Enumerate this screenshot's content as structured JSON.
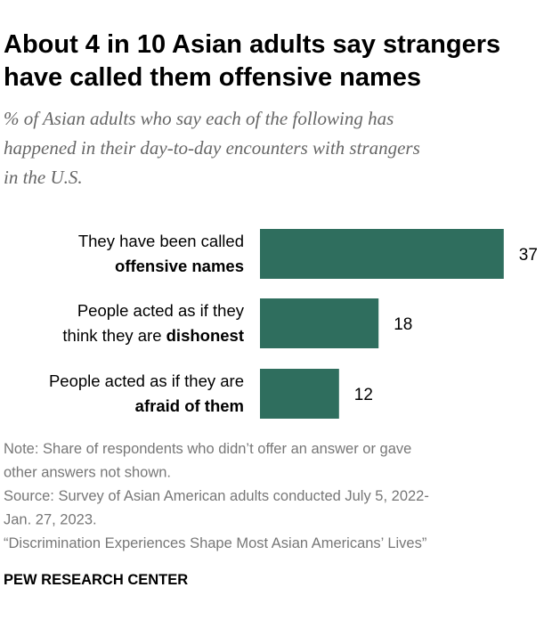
{
  "chart_data": {
    "type": "bar",
    "orientation": "horizontal",
    "title": [
      "About 4 in 10 Asian adults say strangers",
      "have called them offensive names"
    ],
    "subtitle": [
      "% of Asian adults who say each of the following has",
      "happened in their day-to-day encounters with strangers",
      "in the U.S."
    ],
    "categories": [
      [
        [
          {
            "text": "They have been called"
          }
        ],
        [
          {
            "text": "offensive names",
            "bold": true
          }
        ]
      ],
      [
        [
          {
            "text": "People acted as if they"
          }
        ],
        [
          {
            "text": "think they are "
          },
          {
            "text": "dishonest",
            "bold": true
          }
        ]
      ],
      [
        [
          {
            "text": "People acted as if they are"
          }
        ],
        [
          {
            "text": "afraid of them",
            "bold": true
          }
        ]
      ]
    ],
    "values": [
      37,
      18,
      12
    ],
    "color": "#2f6e5e",
    "notes": [
      "Note: Share of respondents who didn’t offer an answer or gave",
      "other answers not shown.",
      "Source: Survey of Asian American adults conducted July 5, 2022-",
      "Jan. 27, 2023.",
      "“Discrimination Experiences Shape Most Asian Americans’ Lives”"
    ],
    "source": "PEW RESEARCH CENTER"
  }
}
